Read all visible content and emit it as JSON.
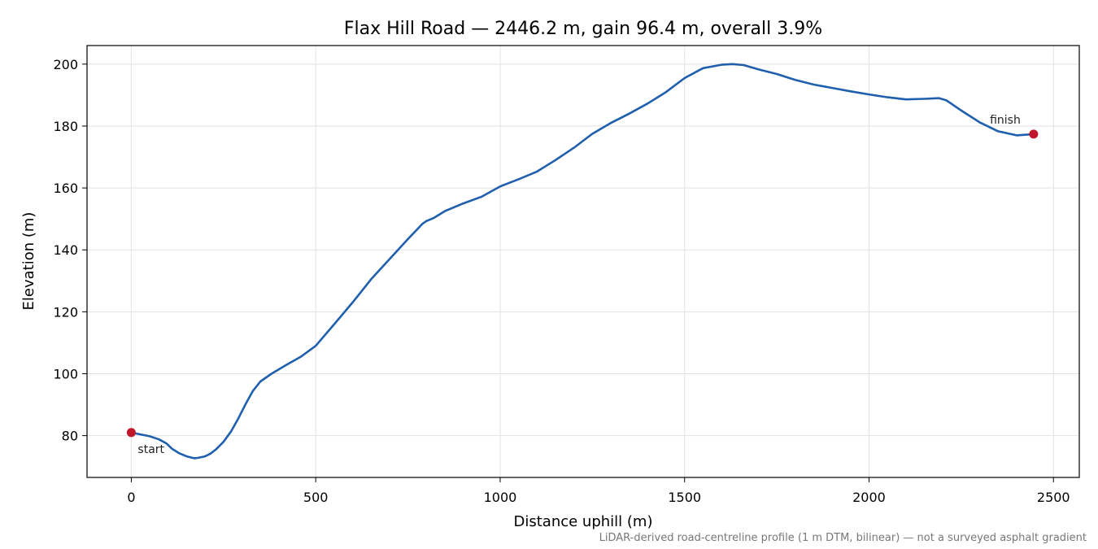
{
  "chart_data": {
    "type": "line",
    "title": "Flax Hill Road — 2446.2 m, gain 96.4 m, overall 3.9%",
    "xlabel": "Distance uphill (m)",
    "ylabel": "Elevation (m)",
    "xlim": [
      -120,
      2570
    ],
    "ylim": [
      66.5,
      206
    ],
    "xticks": [
      0,
      500,
      1000,
      1500,
      2000,
      2500
    ],
    "yticks": [
      80,
      100,
      120,
      140,
      160,
      180,
      200
    ],
    "grid": true,
    "line_color": "#1f5fad",
    "marker_color": "#c0182a",
    "series": [
      {
        "x": [
          0,
          25,
          50,
          75,
          95,
          110,
          130,
          150,
          170,
          180,
          200,
          215,
          230,
          250,
          270,
          290,
          310,
          330,
          350,
          380,
          420,
          460,
          500,
          550,
          600,
          650,
          700,
          750,
          790,
          800,
          820,
          850,
          900,
          950,
          1000,
          1050,
          1100,
          1150,
          1200,
          1250,
          1300,
          1350,
          1400,
          1450,
          1500,
          1550,
          1600,
          1630,
          1660,
          1700,
          1750,
          1800,
          1850,
          1900,
          1950,
          2000,
          2050,
          2100,
          2150,
          2190,
          2210,
          2250,
          2300,
          2350,
          2400,
          2446.2
        ],
        "y": [
          81,
          80.4,
          79.8,
          78.8,
          77.5,
          75.8,
          74.3,
          73.3,
          72.7,
          72.8,
          73.3,
          74.2,
          75.6,
          78.0,
          81.3,
          85.5,
          90.2,
          94.5,
          97.5,
          100.0,
          102.8,
          105.5,
          109.0,
          116.0,
          123.0,
          130.5,
          137.0,
          143.5,
          148.5,
          149.3,
          150.3,
          152.5,
          155.0,
          157.2,
          160.5,
          162.8,
          165.3,
          169.0,
          173.0,
          177.5,
          181.0,
          184.0,
          187.3,
          191.0,
          195.5,
          198.7,
          199.8,
          200.0,
          199.7,
          198.3,
          196.8,
          194.9,
          193.4,
          192.3,
          191.2,
          190.2,
          189.3,
          188.6,
          188.8,
          189.0,
          188.3,
          185.0,
          181.2,
          178.3,
          177.0,
          177.4
        ]
      }
    ],
    "annotations": [
      {
        "text": "start",
        "x": 0,
        "y": 81
      },
      {
        "text": "finish",
        "x": 2446.2,
        "y": 177.4
      }
    ]
  },
  "footnote": "LiDAR-derived road-centreline profile (1 m DTM, bilinear) — not a surveyed asphalt gradient"
}
